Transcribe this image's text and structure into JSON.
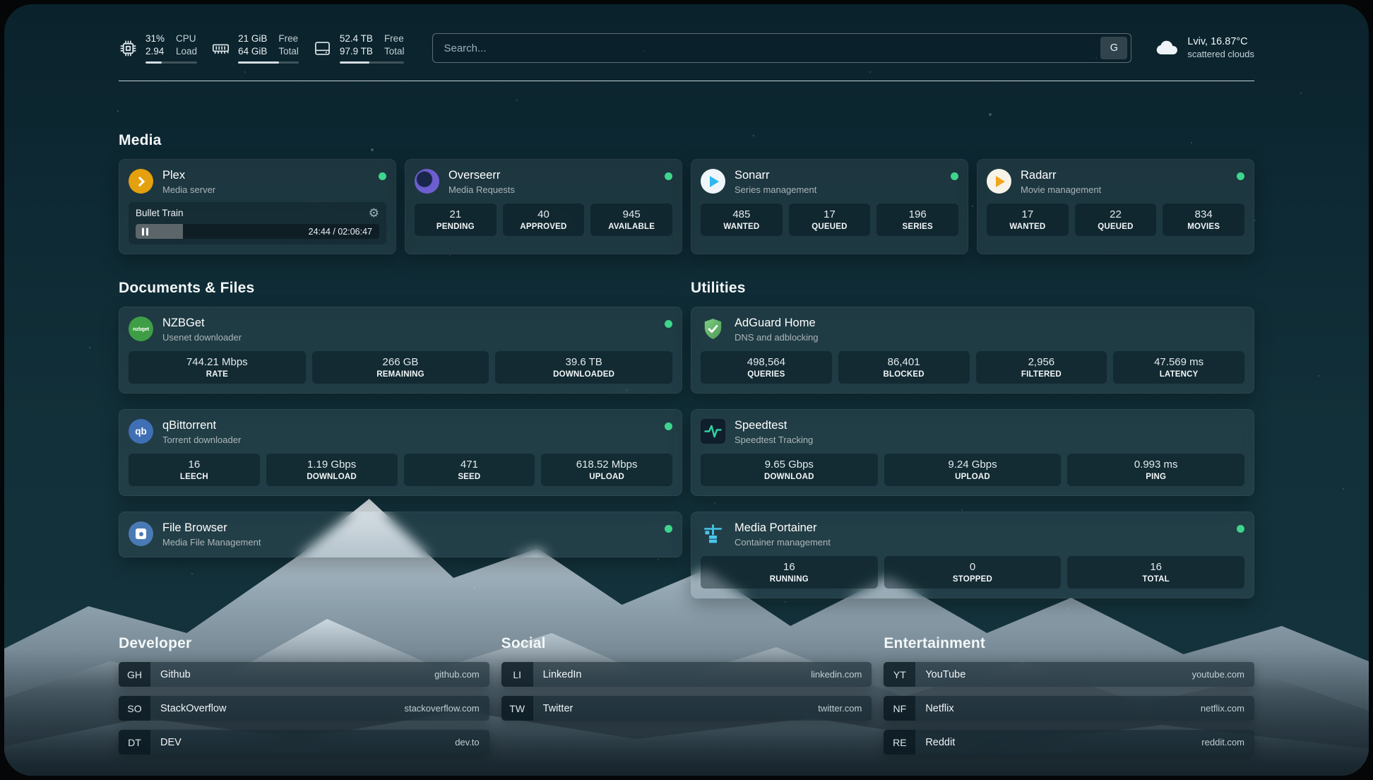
{
  "colors": {
    "status_online": "#3ed58c",
    "plex_gold": "#e5a00d",
    "background_teal": "#0e2a34"
  },
  "header": {
    "resources": [
      {
        "icon": "cpu-icon",
        "v1": "31%",
        "v2": "2.94",
        "l1": "CPU",
        "l2": "Load",
        "percent": 31
      },
      {
        "icon": "memory-icon",
        "v1": "21 GiB",
        "v2": "64 GiB",
        "l1": "Free",
        "l2": "Total",
        "percent": 67
      },
      {
        "icon": "disk-icon",
        "v1": "52.4 TB",
        "v2": "97.9 TB",
        "l1": "Free",
        "l2": "Total",
        "percent": 46
      }
    ],
    "search": {
      "placeholder": "Search...",
      "provider_button": "G"
    },
    "weather": {
      "icon": "cloud-icon",
      "location": "Lviv, 16.87°C",
      "condition": "scattered clouds"
    }
  },
  "media": {
    "title": "Media",
    "plex": {
      "icon": "plex-icon",
      "name": "Plex",
      "desc": "Media server",
      "online": true,
      "now_playing": "Bullet Train",
      "elapsed_total": "24:44 / 02:06:47",
      "progress_percent": 19.5
    },
    "overseerr": {
      "icon": "overseerr-icon",
      "name": "Overseerr",
      "desc": "Media Requests",
      "online": true,
      "stats": [
        {
          "value": "21",
          "label": "PENDING"
        },
        {
          "value": "40",
          "label": "APPROVED"
        },
        {
          "value": "945",
          "label": "AVAILABLE"
        }
      ]
    },
    "sonarr": {
      "icon": "sonarr-icon",
      "name": "Sonarr",
      "desc": "Series management",
      "online": true,
      "stats": [
        {
          "value": "485",
          "label": "WANTED"
        },
        {
          "value": "17",
          "label": "QUEUED"
        },
        {
          "value": "196",
          "label": "SERIES"
        }
      ]
    },
    "radarr": {
      "icon": "radarr-icon",
      "name": "Radarr",
      "desc": "Movie management",
      "online": true,
      "stats": [
        {
          "value": "17",
          "label": "WANTED"
        },
        {
          "value": "22",
          "label": "QUEUED"
        },
        {
          "value": "834",
          "label": "MOVIES"
        }
      ]
    }
  },
  "documents": {
    "title": "Documents & Files",
    "nzbget": {
      "icon": "nzbget-icon",
      "name": "NZBGet",
      "desc": "Usenet downloader",
      "online": true,
      "stats": [
        {
          "value": "744.21 Mbps",
          "label": "RATE"
        },
        {
          "value": "266 GB",
          "label": "REMAINING"
        },
        {
          "value": "39.6 TB",
          "label": "DOWNLOADED"
        }
      ]
    },
    "qbittorrent": {
      "icon": "qbittorrent-icon",
      "name": "qBittorrent",
      "desc": "Torrent downloader",
      "online": true,
      "stats": [
        {
          "value": "16",
          "label": "LEECH"
        },
        {
          "value": "1.19 Gbps",
          "label": "DOWNLOAD"
        },
        {
          "value": "471",
          "label": "SEED"
        },
        {
          "value": "618.52 Mbps",
          "label": "UPLOAD"
        }
      ]
    },
    "filebrowser": {
      "icon": "filebrowser-icon",
      "name": "File Browser",
      "desc": "Media File Management",
      "online": true
    }
  },
  "utilities": {
    "title": "Utilities",
    "adguard": {
      "icon": "adguard-icon",
      "name": "AdGuard Home",
      "desc": "DNS and adblocking",
      "stats": [
        {
          "value": "498,564",
          "label": "QUERIES"
        },
        {
          "value": "86,401",
          "label": "BLOCKED"
        },
        {
          "value": "2,956",
          "label": "FILTERED"
        },
        {
          "value": "47.569 ms",
          "label": "LATENCY"
        }
      ]
    },
    "speedtest": {
      "icon": "speedtest-icon",
      "name": "Speedtest",
      "desc": "Speedtest Tracking",
      "stats": [
        {
          "value": "9.65 Gbps",
          "label": "DOWNLOAD"
        },
        {
          "value": "9.24 Gbps",
          "label": "UPLOAD"
        },
        {
          "value": "0.993 ms",
          "label": "PING"
        }
      ]
    },
    "portainer": {
      "icon": "portainer-icon",
      "name": "Media Portainer",
      "desc": "Container management",
      "online": true,
      "stats": [
        {
          "value": "16",
          "label": "RUNNING"
        },
        {
          "value": "0",
          "label": "STOPPED"
        },
        {
          "value": "16",
          "label": "TOTAL"
        }
      ]
    }
  },
  "bookmarks": [
    {
      "title": "Developer",
      "items": [
        {
          "abbr": "GH",
          "name": "Github",
          "domain": "github.com"
        },
        {
          "abbr": "SO",
          "name": "StackOverflow",
          "domain": "stackoverflow.com"
        },
        {
          "abbr": "DT",
          "name": "DEV",
          "domain": "dev.to"
        }
      ]
    },
    {
      "title": "Social",
      "items": [
        {
          "abbr": "LI",
          "name": "LinkedIn",
          "domain": "linkedin.com"
        },
        {
          "abbr": "TW",
          "name": "Twitter",
          "domain": "twitter.com"
        }
      ]
    },
    {
      "title": "Entertainment",
      "items": [
        {
          "abbr": "YT",
          "name": "YouTube",
          "domain": "youtube.com"
        },
        {
          "abbr": "NF",
          "name": "Netflix",
          "domain": "netflix.com"
        },
        {
          "abbr": "RE",
          "name": "Reddit",
          "domain": "reddit.com"
        }
      ]
    }
  ]
}
